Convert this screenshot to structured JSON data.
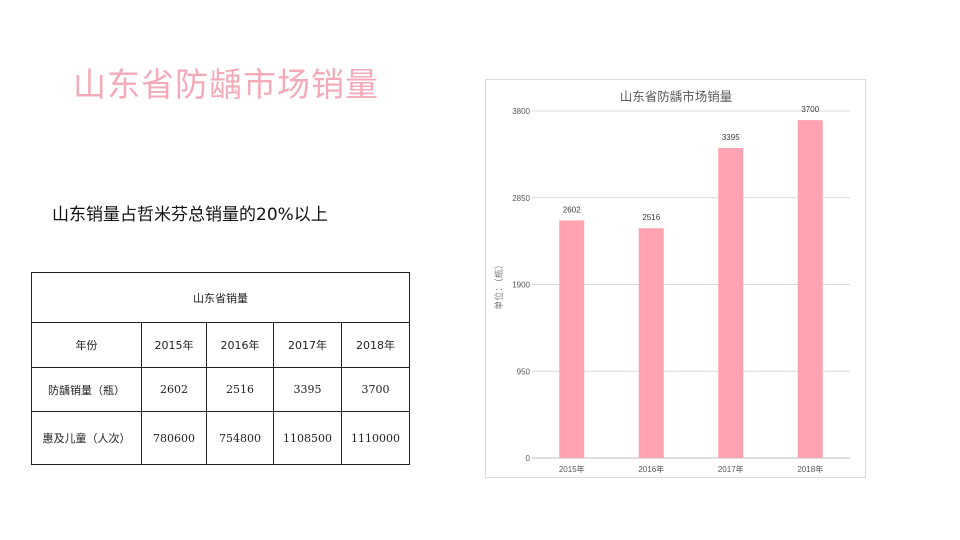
{
  "slide": {
    "title": "山东省防龋市场销量",
    "subtitle": "山东销量占哲米芬总销量的20%以上"
  },
  "table": {
    "caption": "山东省销量",
    "header": [
      "年份",
      "2015年",
      "2016年",
      "2017年",
      "2018年"
    ],
    "rows": [
      [
        "防龋销量（瓶）",
        "2602",
        "2516",
        "3395",
        "3700"
      ],
      [
        "惠及儿童（人次）",
        "780600",
        "754800",
        "1108500",
        "1110000"
      ]
    ]
  },
  "colors": {
    "title": "#f4aab8",
    "bar": "#ffa3b1"
  },
  "chart_data": {
    "type": "bar",
    "title": "山东省防龋市场销量",
    "ylabel": "单位：（瓶）",
    "xlabel": "",
    "categories": [
      "2015年",
      "2016年",
      "2017年",
      "2018年"
    ],
    "values": [
      2602,
      2516,
      3395,
      3700
    ],
    "ylim": [
      0,
      3800
    ],
    "yticks": [
      0,
      950,
      1900,
      2850,
      3800
    ],
    "grid": true,
    "legend": "none",
    "data_labels": true
  }
}
